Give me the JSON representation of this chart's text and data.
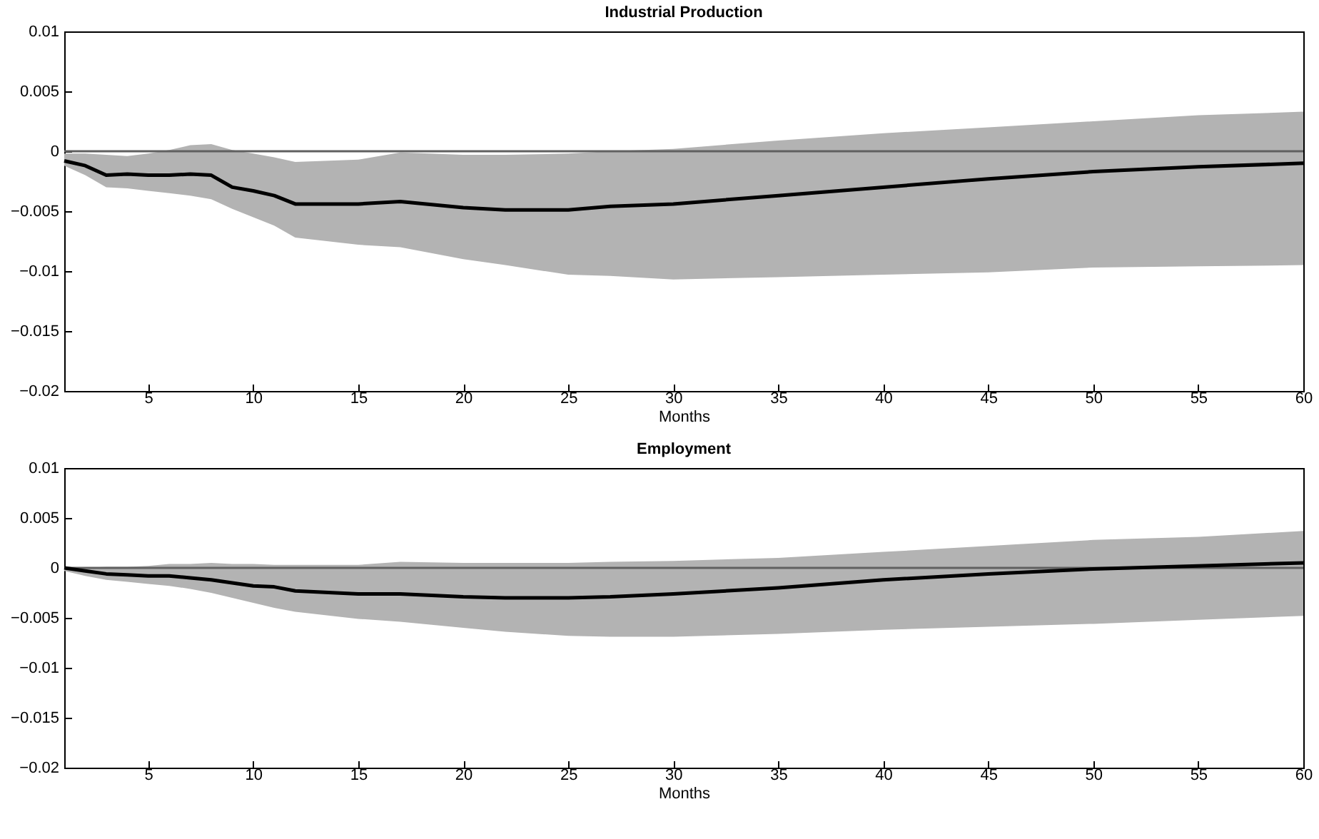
{
  "chart_data": [
    {
      "type": "line",
      "title": "Industrial Production",
      "xlabel": "Months",
      "x": [
        1,
        2,
        3,
        4,
        5,
        6,
        7,
        8,
        9,
        10,
        11,
        12,
        15,
        17,
        20,
        22,
        25,
        27,
        30,
        35,
        40,
        45,
        50,
        55,
        60
      ],
      "xlim": [
        1,
        60
      ],
      "xticks": [
        5,
        10,
        15,
        20,
        25,
        30,
        35,
        40,
        45,
        50,
        55,
        60
      ],
      "ylim": [
        -0.02,
        0.01
      ],
      "yticks": [
        {
          "value": -0.02,
          "label": "−0.02"
        },
        {
          "value": -0.015,
          "label": "−0.015"
        },
        {
          "value": -0.01,
          "label": "−0.01"
        },
        {
          "value": -0.005,
          "label": "−0.005"
        },
        0,
        0.005,
        0.01
      ],
      "grid": false,
      "legend": false,
      "series": [
        {
          "color": "#000000",
          "values": [
            -0.0008,
            -0.0012,
            -0.002,
            -0.0019,
            -0.002,
            -0.002,
            -0.0019,
            -0.002,
            -0.003,
            -0.0033,
            -0.0037,
            -0.0044,
            -0.0044,
            -0.0042,
            -0.0047,
            -0.0049,
            -0.0049,
            -0.0046,
            -0.0044,
            -0.0037,
            -0.003,
            -0.0023,
            -0.0017,
            -0.0013,
            -0.001
          ],
          "lower": [
            -0.0012,
            -0.002,
            -0.003,
            -0.0031,
            -0.0033,
            -0.0035,
            -0.0037,
            -0.004,
            -0.0048,
            -0.0055,
            -0.0062,
            -0.0072,
            -0.0078,
            -0.008,
            -0.009,
            -0.0095,
            -0.0103,
            -0.0104,
            -0.0107,
            -0.0105,
            -0.0103,
            -0.0101,
            -0.0097,
            -0.0096,
            -0.0095
          ],
          "upper": [
            -0.0002,
            -0.0002,
            -0.0003,
            -0.0004,
            -0.0002,
            0.0001,
            0.0005,
            0.0006,
            0.0001,
            -0.0002,
            -0.0005,
            -0.0009,
            -0.0007,
            -0.0001,
            -0.0003,
            -0.0003,
            -0.0002,
            0,
            0.0002,
            0.0009,
            0.0015,
            0.002,
            0.0025,
            0.003,
            0.0033
          ]
        }
      ],
      "ref_lines": [
        {
          "axis": "y",
          "value": 0,
          "color": "#606060"
        }
      ]
    },
    {
      "type": "line",
      "title": "Employment",
      "xlabel": "Months",
      "x": [
        1,
        2,
        3,
        4,
        5,
        6,
        7,
        8,
        9,
        10,
        11,
        12,
        15,
        17,
        20,
        22,
        25,
        27,
        30,
        35,
        40,
        45,
        50,
        55,
        60
      ],
      "xlim": [
        1,
        60
      ],
      "xticks": [
        5,
        10,
        15,
        20,
        25,
        30,
        35,
        40,
        45,
        50,
        55,
        60
      ],
      "ylim": [
        -0.02,
        0.01
      ],
      "yticks": [
        {
          "value": -0.02,
          "label": "−0.02"
        },
        {
          "value": -0.015,
          "label": "−0.015"
        },
        {
          "value": -0.01,
          "label": "−0.01"
        },
        {
          "value": -0.005,
          "label": "−0.005"
        },
        0,
        0.005,
        0.01
      ],
      "grid": false,
      "legend": false,
      "series": [
        {
          "color": "#000000",
          "values": [
            0,
            -0.0003,
            -0.0006,
            -0.0007,
            -0.0008,
            -0.0008,
            -0.001,
            -0.0012,
            -0.0015,
            -0.0018,
            -0.0019,
            -0.0023,
            -0.0026,
            -0.0026,
            -0.0029,
            -0.003,
            -0.003,
            -0.0029,
            -0.0026,
            -0.002,
            -0.0012,
            -0.0006,
            -0.0001,
            0.0002,
            0.0005
          ],
          "lower": [
            -0.0003,
            -0.0008,
            -0.0012,
            -0.0014,
            -0.0016,
            -0.0018,
            -0.0021,
            -0.0025,
            -0.003,
            -0.0035,
            -0.004,
            -0.0044,
            -0.0051,
            -0.0054,
            -0.006,
            -0.0064,
            -0.0068,
            -0.0069,
            -0.0069,
            -0.0066,
            -0.0062,
            -0.0059,
            -0.0056,
            -0.0052,
            -0.0048
          ],
          "upper": [
            0,
            0,
            0.0001,
            0.0001,
            0.0002,
            0.0004,
            0.0004,
            0.0005,
            0.0004,
            0.0004,
            0.0003,
            0.0003,
            0.0003,
            0.0006,
            0.0005,
            0.0005,
            0.0005,
            0.0006,
            0.0007,
            0.001,
            0.0016,
            0.0022,
            0.0028,
            0.0031,
            0.0037
          ]
        }
      ],
      "ref_lines": [
        {
          "axis": "y",
          "value": 0,
          "color": "#606060"
        }
      ]
    }
  ]
}
